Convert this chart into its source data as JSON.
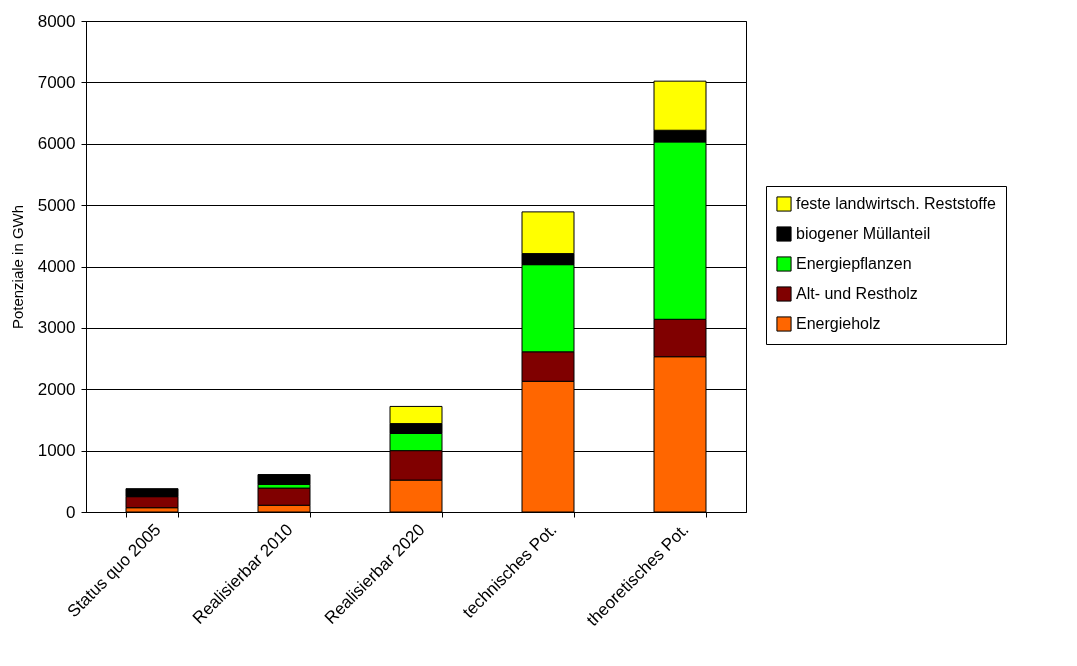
{
  "chart_data": {
    "type": "bar",
    "stacked": true,
    "ylabel": "Potenziale in GWh",
    "categories": [
      "Status quo 2005",
      "Realisierbar 2010",
      "Realisierbar 2020",
      "technisches Pot.",
      "theoretisches Pot."
    ],
    "series": [
      {
        "name": "Energieholz",
        "color": "#ff6600",
        "values": [
          70,
          110,
          520,
          2130,
          2530
        ]
      },
      {
        "name": "Alt- und Restholz",
        "color": "#800000",
        "values": [
          180,
          280,
          480,
          480,
          610
        ]
      },
      {
        "name": "Energiepflanzen",
        "color": "#00ff00",
        "values": [
          null,
          60,
          280,
          1420,
          2890
        ]
      },
      {
        "name": "biogener Müllanteil",
        "color": "#000000",
        "values": [
          130,
          160,
          160,
          180,
          190
        ]
      },
      {
        "name": "feste landwirtsch. Reststoffe",
        "color": "#ffff00",
        "values": [
          null,
          null,
          280,
          680,
          800
        ]
      }
    ],
    "ylim": [
      0,
      8000
    ],
    "yticks": [
      0,
      1000,
      2000,
      3000,
      4000,
      5000,
      6000,
      7000,
      8000
    ],
    "grid": "y",
    "legend": "right"
  }
}
